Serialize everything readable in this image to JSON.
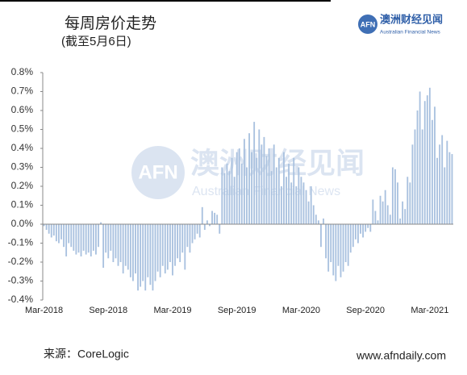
{
  "title": "每周房价走势",
  "subtitle": "(截至5月6日)",
  "logo": {
    "mark": "AFN",
    "name": "澳洲财经见闻",
    "english": "Australian Financial News"
  },
  "source": "来源：CoreLogic",
  "website": "www.afndaily.com",
  "chart_data": {
    "type": "bar",
    "color": "#a9c1df",
    "categories": [
      "Mar-2018",
      null,
      null,
      null,
      null,
      null,
      null,
      null,
      null,
      null,
      null,
      null,
      null,
      null,
      null,
      null,
      null,
      null,
      null,
      null,
      null,
      null,
      null,
      null,
      null,
      null,
      "Sep-2018",
      null,
      null,
      null,
      null,
      null,
      null,
      null,
      null,
      null,
      null,
      null,
      null,
      null,
      null,
      null,
      null,
      null,
      null,
      null,
      null,
      null,
      null,
      null,
      null,
      null,
      "Mar-2019",
      null,
      null,
      null,
      null,
      null,
      null,
      null,
      null,
      null,
      null,
      null,
      null,
      null,
      null,
      null,
      null,
      null,
      null,
      null,
      null,
      null,
      null,
      null,
      null,
      null,
      "Sep-2019",
      null,
      null,
      null,
      null,
      null,
      null,
      null,
      null,
      null,
      null,
      null,
      null,
      null,
      null,
      null,
      null,
      null,
      null,
      null,
      null,
      null,
      null,
      null,
      null,
      null,
      "Mar-2020",
      null,
      null,
      null,
      null,
      null,
      null,
      null,
      null,
      null,
      null,
      null,
      null,
      null,
      null,
      null,
      null,
      null,
      null,
      null,
      null,
      null,
      null,
      null,
      null,
      null,
      "Sep-2020",
      null,
      null,
      null,
      null,
      null,
      null,
      null,
      null,
      null,
      null,
      null,
      null,
      null,
      null,
      null,
      null,
      null,
      null,
      null,
      null,
      null,
      null,
      null,
      null,
      null,
      "Mar-2021",
      null,
      null,
      null,
      null,
      null,
      null,
      null,
      null,
      null
    ],
    "values": [
      -0.01,
      -0.03,
      -0.05,
      -0.07,
      -0.06,
      -0.09,
      -0.1,
      -0.08,
      -0.12,
      -0.17,
      -0.1,
      -0.12,
      -0.14,
      -0.16,
      -0.15,
      -0.17,
      -0.14,
      -0.16,
      -0.15,
      -0.17,
      -0.14,
      -0.16,
      -0.12,
      0.01,
      -0.23,
      -0.15,
      -0.18,
      -0.14,
      -0.2,
      -0.18,
      -0.22,
      -0.2,
      -0.26,
      -0.22,
      -0.24,
      -0.28,
      -0.3,
      -0.26,
      -0.35,
      -0.33,
      -0.3,
      -0.35,
      -0.28,
      -0.32,
      -0.35,
      -0.3,
      -0.25,
      -0.28,
      -0.22,
      -0.26,
      -0.24,
      -0.2,
      -0.27,
      -0.22,
      -0.18,
      -0.2,
      -0.15,
      -0.24,
      -0.12,
      -0.15,
      -0.1,
      -0.08,
      -0.05,
      -0.07,
      0.09,
      -0.03,
      0.02,
      -0.01,
      0.07,
      0.06,
      0.05,
      -0.05,
      0.3,
      0.27,
      0.32,
      0.28,
      0.35,
      0.25,
      0.38,
      0.4,
      0.32,
      0.45,
      0.3,
      0.48,
      0.38,
      0.54,
      0.35,
      0.5,
      0.42,
      0.46,
      0.36,
      0.4,
      0.28,
      0.42,
      0.3,
      0.35,
      0.2,
      0.38,
      0.25,
      0.32,
      0.22,
      0.35,
      0.2,
      0.3,
      0.25,
      0.22,
      0.18,
      0.12,
      0.2,
      0.1,
      0.05,
      0.02,
      -0.12,
      0.03,
      -0.18,
      -0.25,
      -0.2,
      -0.27,
      -0.3,
      -0.22,
      -0.28,
      -0.25,
      -0.2,
      -0.22,
      -0.15,
      -0.12,
      -0.08,
      -0.1,
      -0.05,
      -0.07,
      -0.04,
      -0.02,
      -0.04,
      0.13,
      0.07,
      0.02,
      0.15,
      0.12,
      0.18,
      0.1,
      0.05,
      0.3,
      0.29,
      0.22,
      0.03,
      0.12,
      0.08,
      0.25,
      0.22,
      0.42,
      0.5,
      0.6,
      0.7,
      0.5,
      0.65,
      0.68,
      0.72,
      0.55,
      0.62,
      0.35,
      0.42,
      0.47,
      0.3,
      0.44,
      0.38,
      0.37
    ],
    "ylim": [
      -0.4,
      0.8
    ],
    "yticks": [
      {
        "value": 0.8,
        "label": "0.8%"
      },
      {
        "value": 0.7,
        "label": "0.7%"
      },
      {
        "value": 0.6,
        "label": "0.6%"
      },
      {
        "value": 0.5,
        "label": "0.5%"
      },
      {
        "value": 0.4,
        "label": "0.4%"
      },
      {
        "value": 0.3,
        "label": "0.3%"
      },
      {
        "value": 0.2,
        "label": "0.2%"
      },
      {
        "value": 0.1,
        "label": "0.1%"
      },
      {
        "value": 0,
        "label": "0.0%"
      },
      {
        "value": -0.1,
        "label": "-0.1%"
      },
      {
        "value": -0.2,
        "label": "-0.2%"
      },
      {
        "value": -0.3,
        "label": "-0.3%"
      },
      {
        "value": -0.4,
        "label": "-0.4%"
      }
    ]
  }
}
